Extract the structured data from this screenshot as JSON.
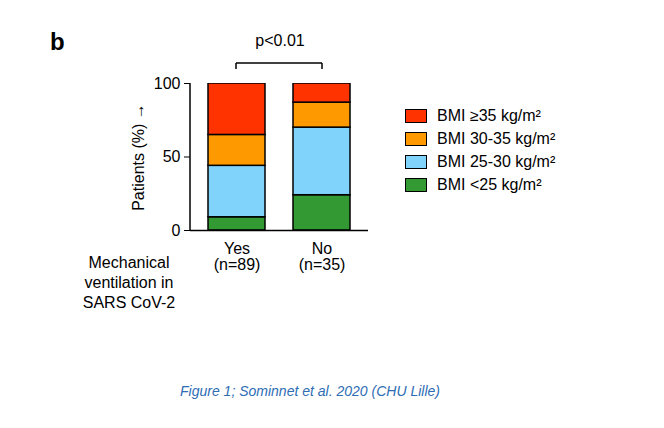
{
  "chart_data": {
    "type": "bar",
    "panel_label": "b",
    "annotation": "p<0.01",
    "ylabel": "Patients (%)",
    "xlabel": "Mechanical ventilation in SARS CoV-2",
    "caption": "Figure 1; Sominnet et al. 2020 (CHU Lille)",
    "categories": [
      "Yes\n(n=89)",
      "No\n(n=35)"
    ],
    "series": [
      {
        "name": "BMI <25 kg/m²",
        "color": "#339933",
        "values": [
          9,
          24
        ]
      },
      {
        "name": "BMI 25-30 kg/m²",
        "color": "#80d4fb",
        "values": [
          35,
          46
        ]
      },
      {
        "name": "BMI 30-35 kg/m²",
        "color": "#ff9900",
        "values": [
          21,
          17
        ]
      },
      {
        "name": "BMI ≥35 kg/m²",
        "color": "#ff3300",
        "values": [
          35,
          13
        ]
      }
    ],
    "ylim": [
      0,
      100
    ],
    "yticks": [
      0,
      50,
      100
    ],
    "stacked": true,
    "legend": "right",
    "grid": false
  }
}
